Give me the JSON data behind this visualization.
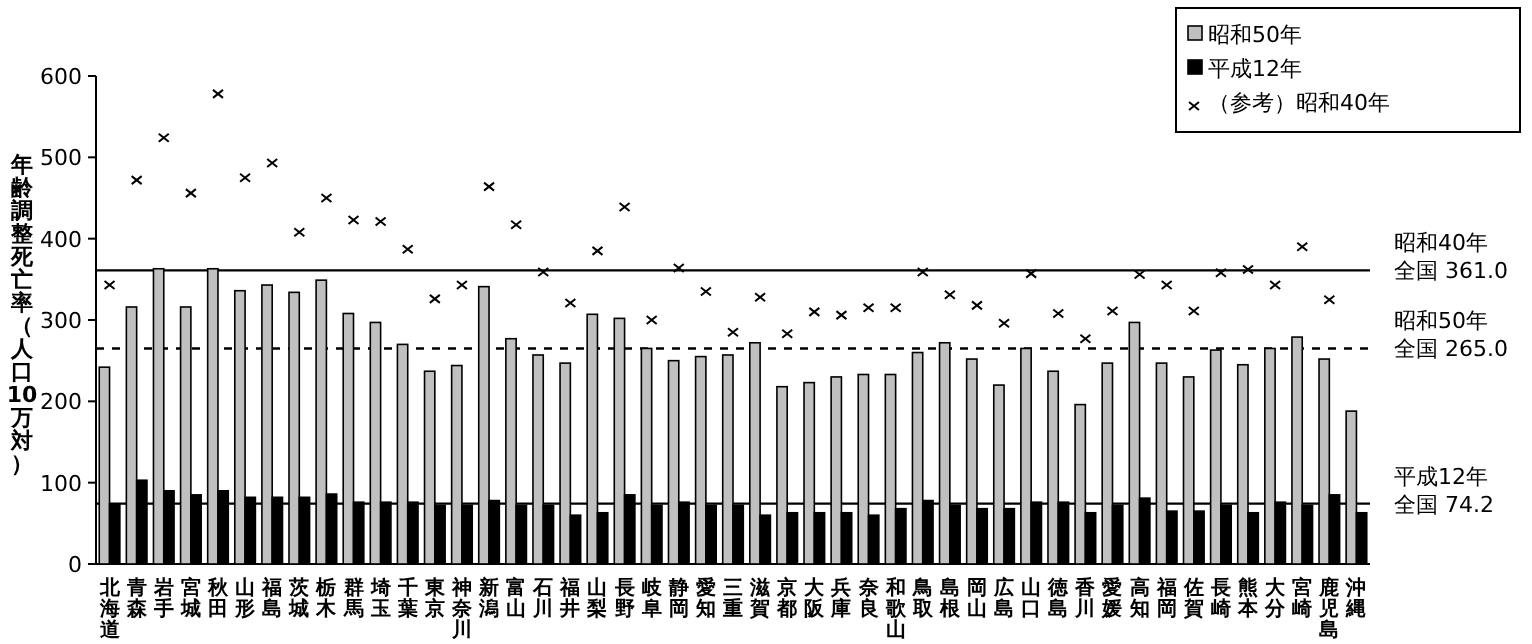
{
  "chart_data": {
    "type": "bar",
    "ylabel": "年齢調整死亡率（人口10万対）",
    "categories": [
      "北海道",
      "青森",
      "岩手",
      "宮城",
      "秋田",
      "山形",
      "福島",
      "茨城",
      "栃木",
      "群馬",
      "埼玉",
      "千葉",
      "東京",
      "神奈川",
      "新潟",
      "富山",
      "石川",
      "福井",
      "山梨",
      "長野",
      "岐阜",
      "静岡",
      "愛知",
      "三重",
      "滋賀",
      "京都",
      "大阪",
      "兵庫",
      "奈良",
      "和歌山",
      "鳥取",
      "島根",
      "岡山",
      "広島",
      "山口",
      "徳島",
      "香川",
      "愛媛",
      "高知",
      "福岡",
      "佐賀",
      "長崎",
      "熊本",
      "大分",
      "宮崎",
      "鹿児島",
      "沖縄"
    ],
    "series": [
      {
        "name": "昭和50年",
        "color": "#c0c0c0",
        "values": [
          242,
          316,
          363,
          316,
          363,
          336,
          343,
          334,
          349,
          308,
          297,
          270,
          237,
          244,
          341,
          277,
          257,
          247,
          307,
          302,
          265,
          250,
          255,
          257,
          272,
          218,
          223,
          230,
          233,
          233,
          260,
          272,
          252,
          220,
          265,
          237,
          196,
          247,
          297,
          247,
          230,
          263,
          245,
          265,
          279,
          252,
          188
        ]
      },
      {
        "name": "平成12年",
        "color": "#000000",
        "values": [
          74,
          103,
          90,
          85,
          90,
          82,
          82,
          82,
          86,
          76,
          76,
          76,
          72,
          72,
          78,
          72,
          72,
          60,
          63,
          85,
          72,
          76,
          72,
          72,
          60,
          63,
          63,
          63,
          60,
          68,
          78,
          72,
          68,
          68,
          76,
          76,
          63,
          72,
          81,
          65,
          65,
          72,
          63,
          76,
          72,
          85,
          63
        ]
      },
      {
        "name": "（参考）昭和40年",
        "type": "scatter",
        "marker": "cross",
        "color": "#000000",
        "values": [
          343,
          472,
          524,
          456,
          578,
          475,
          493,
          408,
          450,
          423,
          421,
          387,
          326,
          343,
          464,
          417,
          359,
          321,
          385,
          439,
          300,
          364,
          335,
          285,
          328,
          283,
          310,
          306,
          315,
          315,
          359,
          331,
          318,
          296,
          357,
          308,
          277,
          311,
          356,
          343,
          311,
          358,
          362,
          343,
          390,
          325,
          null
        ]
      }
    ],
    "ylim": [
      0,
      600
    ],
    "yticks": [
      0,
      100,
      200,
      300,
      400,
      500,
      600
    ],
    "ref_lines": [
      {
        "axis": "y",
        "value": 361.0,
        "label": "昭和40年全国 361.0",
        "line_style": "solid"
      },
      {
        "axis": "y",
        "value": 265.0,
        "label": "昭和50年全国 265.0",
        "line_style": "dashed"
      },
      {
        "axis": "y",
        "value": 74.2,
        "label": "平成12年全国 74.2",
        "line_style": "solid"
      }
    ],
    "legend": "top right",
    "grid": false
  }
}
